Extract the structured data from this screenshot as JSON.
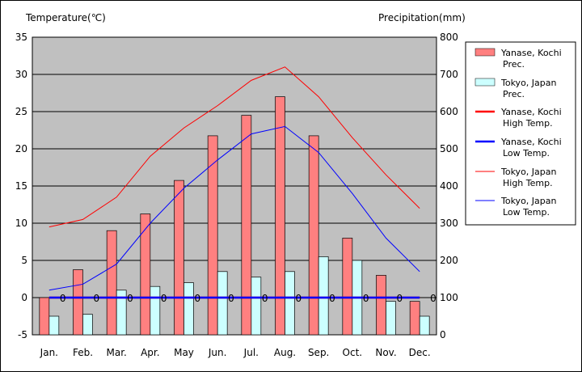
{
  "chart_data": {
    "type": "bar+line",
    "categories": [
      "Jan.",
      "Feb.",
      "Mar.",
      "Apr.",
      "May",
      "Jun.",
      "Jul.",
      "Aug.",
      "Sep.",
      "Oct.",
      "Nov.",
      "Dec."
    ],
    "left_axis": {
      "label": "Temperature(℃)",
      "ylim": [
        -5,
        35
      ],
      "ticks": [
        "35",
        "30",
        "25",
        "20",
        "15",
        "10",
        "5",
        "0",
        "-5"
      ]
    },
    "right_axis": {
      "label": "Precipitation(mm)",
      "ylim": [
        0,
        800
      ],
      "ticks": [
        "800",
        "700",
        "600",
        "500",
        "400",
        "300",
        "200",
        "100",
        "0"
      ]
    },
    "plot_background": "#c0c0c0",
    "grid": true,
    "legend_position": "right",
    "bar_series": [
      {
        "name_lines": [
          "Yanase, Kochi",
          "Prec."
        ],
        "color": "#ff8080",
        "values": [
          100,
          175,
          280,
          325,
          415,
          535,
          590,
          640,
          535,
          260,
          160,
          90
        ]
      },
      {
        "name_lines": [
          "Tokyo, Japan",
          "Prec."
        ],
        "color": "#ccffff",
        "values": [
          50,
          55,
          120,
          130,
          140,
          170,
          155,
          170,
          210,
          200,
          90,
          50
        ]
      }
    ],
    "line_series": [
      {
        "name_lines": [
          "Yanase, Kochi",
          "High Temp."
        ],
        "color": "#ff0000",
        "width": 2.5,
        "values": [
          0,
          0,
          0,
          0,
          0,
          0,
          0,
          0,
          0,
          0,
          0,
          0
        ],
        "point_labels": [
          "0",
          "0",
          "0",
          "0",
          "0",
          "0",
          "0",
          "0",
          "0",
          "0",
          "0",
          "0"
        ]
      },
      {
        "name_lines": [
          "Yanase, Kochi",
          "Low Temp."
        ],
        "color": "#0000ff",
        "width": 2.5,
        "values": [
          0,
          0,
          0,
          0,
          0,
          0,
          0,
          0,
          0,
          0,
          0,
          0
        ]
      },
      {
        "name_lines": [
          "Tokyo, Japan",
          "High Temp."
        ],
        "color": "#ff0000",
        "width": 1,
        "values": [
          9.5,
          10.5,
          13.5,
          19,
          22.8,
          25.8,
          29.2,
          31,
          27,
          21.5,
          16.5,
          12
        ]
      },
      {
        "name_lines": [
          "Tokyo, Japan",
          "Low Temp."
        ],
        "color": "#0000ff",
        "width": 1,
        "values": [
          1,
          1.8,
          4.5,
          10,
          14.7,
          18.5,
          22,
          23,
          19.5,
          14,
          8,
          3.5
        ]
      }
    ]
  }
}
